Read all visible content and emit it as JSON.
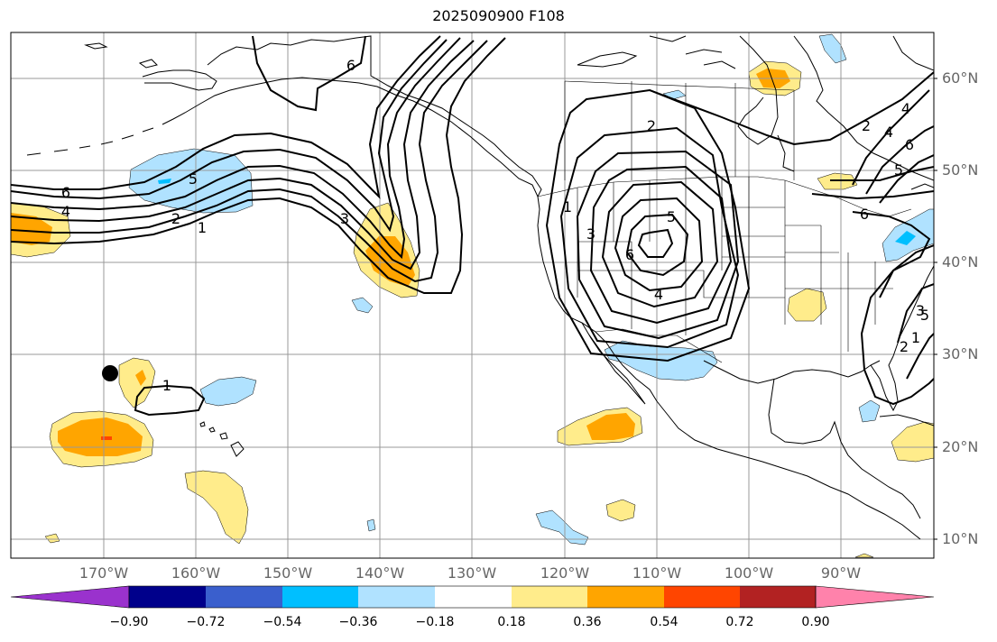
{
  "title": "2025090900 F108",
  "lat_labels": [
    "60°N",
    "50°N",
    "40°N",
    "30°N",
    "20°N",
    "10°N"
  ],
  "lon_labels": [
    "170°W",
    "160°W",
    "150°W",
    "140°W",
    "130°W",
    "120°W",
    "110°W",
    "100°W",
    "90°W"
  ],
  "colorbar": {
    "colors": [
      "#9a32cd",
      "#00008b",
      "#3a5fcd",
      "#00bfff",
      "#b0e2ff",
      "#ffffff",
      "#ffec8b",
      "#ffa500",
      "#ff4500",
      "#b22222",
      "#ff82ab"
    ],
    "ticks": [
      "−0.90",
      "−0.72",
      "−0.54",
      "−0.36",
      "−0.18",
      "0.18",
      "0.36",
      "0.54",
      "0.72",
      "0.90"
    ]
  },
  "contour_labels": [
    "6",
    "4",
    "2",
    "1",
    "5",
    "3",
    "6",
    "2",
    "1",
    "3",
    "5",
    "6",
    "4",
    "1",
    "2",
    "4",
    "6",
    "5",
    "5",
    "3",
    "2",
    "1",
    "4",
    "6"
  ],
  "colors": {
    "positive_light": "#ffec8b",
    "positive_mid": "#ffa500",
    "positive_strong": "#ff4500",
    "negative_light": "#b0e2ff",
    "negative_mid": "#00bfff",
    "grid": "#999999"
  }
}
